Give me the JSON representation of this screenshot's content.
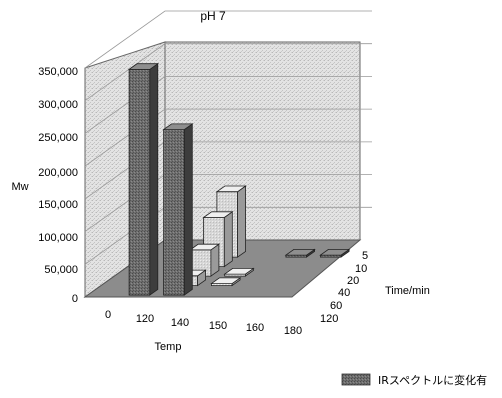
{
  "chart_data": {
    "type": "bar3d",
    "title": "pH 7",
    "ylabel": "Mw",
    "xlabel": "Temp",
    "zlabel": "Time/min",
    "yticks": [
      "0",
      "50,000",
      "100,000",
      "150,000",
      "200,000",
      "250,000",
      "300,000",
      "350,000"
    ],
    "ylim": [
      0,
      350000
    ],
    "temps": [
      "0",
      "120",
      "140",
      "150",
      "160",
      "180"
    ],
    "times": [
      "5",
      "10",
      "20",
      "40",
      "60",
      "120"
    ],
    "bars": [
      {
        "temp": "120",
        "time": "120",
        "value": 345000,
        "ir_changed": true
      },
      {
        "temp": "140",
        "time": "120",
        "value": 253000,
        "ir_changed": true
      },
      {
        "temp": "140",
        "time": "60",
        "value": 15000,
        "ir_changed": false
      },
      {
        "temp": "140",
        "time": "40",
        "value": 40000,
        "ir_changed": false
      },
      {
        "temp": "140",
        "time": "20",
        "value": 75000,
        "ir_changed": false
      },
      {
        "temp": "140",
        "time": "10",
        "value": 100000,
        "ir_changed": false
      },
      {
        "temp": "150",
        "time": "60",
        "value": 3000,
        "ir_changed": false
      },
      {
        "temp": "150",
        "time": "40",
        "value": 3000,
        "ir_changed": false
      },
      {
        "temp": "160",
        "time": "10",
        "value": 3000,
        "ir_changed": true
      },
      {
        "temp": "180",
        "time": "10",
        "value": 3000,
        "ir_changed": true
      }
    ],
    "legend": {
      "label": "IRスペクトルに変化有",
      "position": "bottom-right"
    },
    "grid": true
  }
}
